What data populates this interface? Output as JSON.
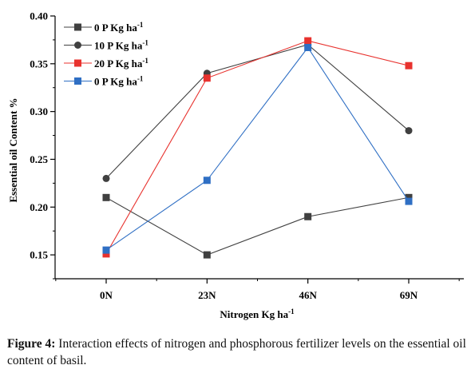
{
  "chart_data": {
    "type": "line",
    "categories": [
      "0N",
      "23N",
      "46N",
      "69N"
    ],
    "xlabel": "Nitrogen Kg ha",
    "xlabel_sup": "-1",
    "ylabel": "Essential oil Content %",
    "ylim": [
      0.125,
      0.4
    ],
    "yticks": [
      "0.15",
      "0.20",
      "0.25",
      "0.30",
      "0.35",
      "0.40"
    ],
    "legend_position": "top-left",
    "series": [
      {
        "name": "0 P Kg ha",
        "sup": "-1",
        "color": "#404040",
        "marker": "square",
        "values": [
          0.21,
          0.15,
          0.19,
          0.21
        ]
      },
      {
        "name": "10 P Kg ha",
        "sup": "-1",
        "color": "#404040",
        "marker": "circle",
        "values": [
          0.23,
          0.34,
          0.37,
          0.28
        ]
      },
      {
        "name": "20 P Kg ha",
        "sup": "-1",
        "color": "#e8322e",
        "marker": "square",
        "values": [
          0.151,
          0.335,
          0.374,
          0.348
        ]
      },
      {
        "name": "0 P Kg ha",
        "sup": "-1",
        "color": "#2f6fc4",
        "marker": "square",
        "values": [
          0.155,
          0.228,
          0.367,
          0.206
        ]
      }
    ]
  },
  "caption": {
    "label": "Figure 4:",
    "text": " Interaction effects of nitrogen and phosphorous fertilizer levels on the essential oil content of basil."
  }
}
